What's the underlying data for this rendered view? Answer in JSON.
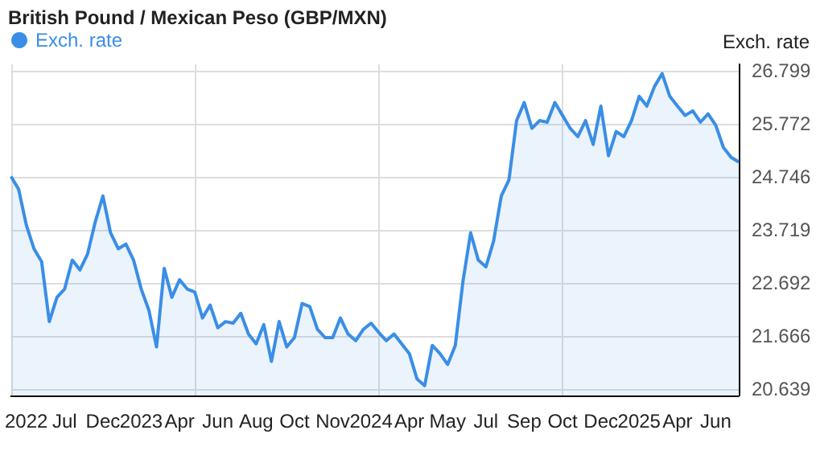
{
  "chart_data": {
    "type": "area",
    "title": "British Pound / Mexican Peso (GBP/MXN)",
    "ylabel": "Exch. rate",
    "categories": [
      null,
      null,
      "2022",
      null,
      null,
      null,
      null,
      "Jul",
      null,
      null,
      null,
      null,
      "Dec",
      null,
      null,
      null,
      null,
      "2023",
      null,
      null,
      null,
      null,
      "Apr",
      null,
      null,
      null,
      null,
      "Jun",
      null,
      null,
      null,
      null,
      "Aug",
      null,
      null,
      null,
      null,
      "Oct",
      null,
      null,
      null,
      null,
      "Nov",
      null,
      null,
      null,
      null,
      "2024",
      null,
      null,
      null,
      null,
      "Apr",
      null,
      null,
      null,
      null,
      "May",
      null,
      null,
      null,
      null,
      "Jul",
      null,
      null,
      null,
      null,
      "Sep",
      null,
      null,
      null,
      null,
      "Oct",
      null,
      null,
      null,
      null,
      "Dec",
      null,
      null,
      null,
      null,
      "2025",
      null,
      null,
      null,
      null,
      "Apr",
      null,
      null,
      null,
      null,
      "Jun",
      null,
      null,
      null
    ],
    "series": [
      {
        "name": "Exch. rate",
        "color": "#3a8ee6",
        "values": [
          24.75,
          24.5,
          23.81,
          23.35,
          23.1,
          21.94,
          22.41,
          22.57,
          23.13,
          22.94,
          23.25,
          23.87,
          24.37,
          23.66,
          23.35,
          23.44,
          23.13,
          22.57,
          22.16,
          21.45,
          22.97,
          22.41,
          22.75,
          22.57,
          22.51,
          22.01,
          22.26,
          21.82,
          21.94,
          21.91,
          22.1,
          21.7,
          21.51,
          21.88,
          21.17,
          21.94,
          21.45,
          21.63,
          22.29,
          22.23,
          21.79,
          21.63,
          21.63,
          22.01,
          21.7,
          21.57,
          21.79,
          21.91,
          21.73,
          21.57,
          21.7,
          21.51,
          21.32,
          20.83,
          20.7,
          21.48,
          21.32,
          21.11,
          21.48,
          22.72,
          23.66,
          23.13,
          23.0,
          23.5,
          24.37,
          24.68,
          25.83,
          26.18,
          25.68,
          25.83,
          25.8,
          26.18,
          25.93,
          25.68,
          25.52,
          25.83,
          25.37,
          26.11,
          25.15,
          25.62,
          25.52,
          25.83,
          26.3,
          26.11,
          26.49,
          26.74,
          26.3,
          26.11,
          25.93,
          26.02,
          25.8,
          25.96,
          25.74,
          25.31,
          25.12,
          25.03
        ]
      }
    ],
    "ylim": [
      20.51,
      26.92
    ],
    "yticks": [
      20.639,
      21.666,
      22.692,
      23.719,
      24.746,
      25.772,
      26.799
    ],
    "grid": true,
    "legend": "top left"
  }
}
